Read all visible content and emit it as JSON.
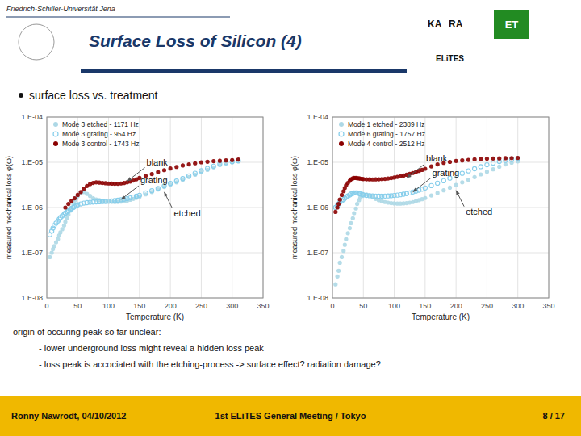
{
  "page": {
    "university": "Friedrich-Schiller-Universität Jena",
    "title": "Surface Loss of Silicon (4)",
    "logos": [
      "KA",
      "RA",
      "ET",
      "ELiTES"
    ],
    "bullet": "surface loss vs. treatment",
    "body": [
      "origin of occuring peak so far unclear:",
      "- lower underground loss might reveal a hidden loss peak",
      "- loss peak is accociated with the etching-process -> surface effect? radiation damage?"
    ],
    "footer": [
      "Ronny Nawrodt, 04/10/2012",
      "1st ELiTES General Meeting / Tokyo",
      "8 / 17"
    ],
    "color": "#1a3869",
    "footer_color": "#f0b800",
    "logo_color": "#228B22"
  },
  "chart_data": [
    {
      "type": "scatter",
      "x_label": "Temperature (K)",
      "y_label": "measured mechanical loss φ(ω)",
      "log": "y",
      "grid": true,
      "legend": "upper left",
      "xlim": [
        0,
        350
      ],
      "xticks": [
        0,
        50,
        100,
        150,
        200,
        250,
        300,
        350
      ],
      "ylim": [
        1e-08,
        0.0001
      ],
      "yticks": [
        {
          "value": 1e-08,
          "label": "1.E-08"
        },
        {
          "value": 1e-07,
          "label": "1.E-07"
        },
        {
          "value": 1e-06,
          "label": "1.E-06"
        },
        {
          "value": 1e-05,
          "label": "1.E-05"
        },
        {
          "value": 0.0001,
          "label": "1.E-04"
        }
      ],
      "series": [
        {
          "name": "Mode 3 etched - 1171 Hz",
          "color": "#add8e6",
          "marker": "circle",
          "x": [
            5,
            8,
            10,
            12,
            15,
            18,
            20,
            22,
            25,
            28,
            30,
            33,
            35,
            38,
            40,
            43,
            45,
            48,
            50,
            55,
            60,
            65,
            70,
            75,
            80,
            85,
            90,
            95,
            100,
            105,
            110,
            115,
            120,
            125,
            130,
            135,
            140,
            145,
            150,
            160,
            170,
            180,
            190,
            200,
            210,
            220,
            230,
            240,
            250,
            260,
            270,
            280,
            290,
            300,
            310
          ],
          "values": [
            8e-08,
            1e-07,
            1.2e-07,
            1.4e-07,
            1.7e-07,
            2e-07,
            2.4e-07,
            2.8e-07,
            3.3e-07,
            4e-07,
            4.8e-07,
            5.8e-07,
            7e-07,
            8.5e-07,
            1e-06,
            1.2e-06,
            1.4e-06,
            1.6e-06,
            1.8e-06,
            2.1e-06,
            2.2e-06,
            2e-06,
            1.8e-06,
            1.6e-06,
            1.5e-06,
            1.45e-06,
            1.4e-06,
            1.38e-06,
            1.35e-06,
            1.33e-06,
            1.32e-06,
            1.33e-06,
            1.35e-06,
            1.38e-06,
            1.42e-06,
            1.48e-06,
            1.55e-06,
            1.63e-06,
            1.72e-06,
            1.95e-06,
            2.2e-06,
            2.5e-06,
            2.85e-06,
            3.2e-06,
            3.6e-06,
            4.1e-06,
            4.7e-06,
            5.3e-06,
            6e-06,
            6.8e-06,
            7.7e-06,
            8.7e-06,
            9.5e-06,
            1e-05,
            1.05e-05
          ]
        },
        {
          "name": "Mode 3 grating - 954 Hz",
          "color": "#87ceeb",
          "marker": "open-circle",
          "x": [
            5,
            8,
            10,
            12,
            15,
            18,
            20,
            22,
            25,
            28,
            30,
            33,
            35,
            38,
            40,
            43,
            45,
            48,
            50,
            55,
            60,
            65,
            70,
            75,
            80,
            85,
            90,
            95,
            100,
            105,
            110,
            115,
            120,
            125,
            130,
            135,
            140,
            145,
            150,
            160,
            170,
            180,
            190,
            200,
            210,
            220,
            230,
            240,
            250,
            260,
            270,
            280,
            290,
            300,
            310
          ],
          "values": [
            2.5e-07,
            3e-07,
            3.5e-07,
            4e-07,
            4.5e-07,
            5e-07,
            5.5e-07,
            6e-07,
            6.5e-07,
            7e-07,
            7.5e-07,
            8e-07,
            8.5e-07,
            9e-07,
            9.5e-07,
            1e-06,
            1.05e-06,
            1.1e-06,
            1.15e-06,
            1.2e-06,
            1.25e-06,
            1.28e-06,
            1.3e-06,
            1.32e-06,
            1.33e-06,
            1.34e-06,
            1.35e-06,
            1.36e-06,
            1.38e-06,
            1.4e-06,
            1.42e-06,
            1.45e-06,
            1.48e-06,
            1.52e-06,
            1.57e-06,
            1.63e-06,
            1.7e-06,
            1.78e-06,
            1.87e-06,
            2.1e-06,
            2.35e-06,
            2.65e-06,
            3e-06,
            3.4e-06,
            3.85e-06,
            4.35e-06,
            5e-06,
            5.7e-06,
            6.5e-06,
            7.3e-06,
            8.2e-06,
            9.2e-06,
            9.8e-06,
            1.03e-05,
            1.08e-05
          ]
        },
        {
          "name": "Mode 3 control - 1743 Hz",
          "color": "#8b0000",
          "marker": "circle",
          "x": [
            30,
            35,
            40,
            45,
            50,
            55,
            60,
            65,
            70,
            75,
            80,
            85,
            90,
            95,
            100,
            105,
            110,
            115,
            120,
            125,
            130,
            135,
            140,
            145,
            150,
            160,
            170,
            180,
            190,
            200,
            210,
            220,
            230,
            240,
            250,
            260,
            270,
            280,
            290,
            300,
            310
          ],
          "values": [
            1e-06,
            1.2e-06,
            1.4e-06,
            1.6e-06,
            1.9e-06,
            2.2e-06,
            2.6e-06,
            3e-06,
            3.3e-06,
            3.5e-06,
            3.6e-06,
            3.55e-06,
            3.5e-06,
            3.45e-06,
            3.4e-06,
            3.38e-06,
            3.35e-06,
            3.35e-06,
            3.4e-06,
            3.48e-06,
            3.6e-06,
            3.75e-06,
            3.95e-06,
            4.2e-06,
            4.5e-06,
            5e-06,
            5.5e-06,
            6.1e-06,
            6.7e-06,
            7.3e-06,
            7.9e-06,
            8.5e-06,
            9e-06,
            9.5e-06,
            1e-05,
            1.03e-05,
            1.06e-05,
            1.08e-05,
            1.1e-05,
            1.12e-05,
            1.15e-05
          ]
        }
      ],
      "annotations": [
        {
          "text": "blank",
          "x": 130,
          "y": 3.8e-06
        },
        {
          "text": "grating",
          "x": 120,
          "y": 1.5e-06
        },
        {
          "text": "etched",
          "x": 190,
          "y": 2.2e-06
        }
      ]
    },
    {
      "type": "scatter",
      "x_label": "Temperature (K)",
      "y_label": "measured mechanical loss φ(ω)",
      "log": "y",
      "grid": true,
      "legend": "upper left",
      "xlim": [
        0,
        350
      ],
      "xticks": [
        0,
        50,
        100,
        150,
        200,
        250,
        300,
        350
      ],
      "ylim": [
        1e-08,
        0.0001
      ],
      "yticks": [
        {
          "value": 1e-08,
          "label": "1.E-08"
        },
        {
          "value": 1e-07,
          "label": "1.E-07"
        },
        {
          "value": 1e-06,
          "label": "1.E-06"
        },
        {
          "value": 1e-05,
          "label": "1.E-05"
        },
        {
          "value": 0.0001,
          "label": "1.E-04"
        }
      ],
      "series": [
        {
          "name": "Mode 1 etched - 2389 Hz",
          "color": "#add8e6",
          "marker": "circle",
          "x": [
            5,
            8,
            10,
            12,
            15,
            18,
            20,
            22,
            25,
            28,
            30,
            33,
            35,
            38,
            40,
            43,
            45,
            48,
            50,
            55,
            60,
            65,
            70,
            75,
            80,
            85,
            90,
            95,
            100,
            105,
            110,
            115,
            120,
            125,
            130,
            135,
            140,
            145,
            150,
            160,
            170,
            180,
            190,
            200,
            210,
            220,
            230,
            240,
            250,
            260,
            270,
            280,
            290,
            300
          ],
          "values": [
            2e-08,
            3e-08,
            4e-08,
            6e-08,
            8e-08,
            1.1e-07,
            1.5e-07,
            2e-07,
            2.7e-07,
            3.5e-07,
            4.5e-07,
            5.8e-07,
            7.5e-07,
            9.5e-07,
            1.2e-06,
            1.45e-06,
            1.65e-06,
            1.8e-06,
            1.9e-06,
            1.95e-06,
            1.85e-06,
            1.7e-06,
            1.55e-06,
            1.45e-06,
            1.38e-06,
            1.32e-06,
            1.28e-06,
            1.25e-06,
            1.23e-06,
            1.22e-06,
            1.22e-06,
            1.23e-06,
            1.25e-06,
            1.28e-06,
            1.32e-06,
            1.38e-06,
            1.45e-06,
            1.53e-06,
            1.62e-06,
            1.85e-06,
            2.1e-06,
            2.4e-06,
            2.75e-06,
            3.15e-06,
            3.6e-06,
            4.1e-06,
            4.7e-06,
            5.4e-06,
            6.2e-06,
            7e-06,
            8e-06,
            9e-06,
            9.8e-06,
            1.05e-05
          ]
        },
        {
          "name": "Mode 6 grating - 1757 Hz",
          "color": "#87ceeb",
          "marker": "open-circle",
          "x": [
            5,
            8,
            10,
            12,
            15,
            18,
            20,
            22,
            25,
            28,
            30,
            33,
            35,
            38,
            40,
            43,
            45,
            48,
            50,
            55,
            60,
            65,
            70,
            75,
            80,
            85,
            90,
            95,
            100,
            105,
            110,
            115,
            120,
            125,
            130,
            135,
            140,
            145,
            150,
            160,
            170,
            180,
            190,
            200,
            210,
            220,
            230,
            240,
            250,
            260,
            270,
            280,
            290,
            300
          ],
          "values": [
            1e-06,
            1.1e-06,
            1.2e-06,
            1.3e-06,
            1.4e-06,
            1.5e-06,
            1.6e-06,
            1.7e-06,
            1.8e-06,
            1.9e-06,
            2e-06,
            2.05e-06,
            2.1e-06,
            2.1e-06,
            2.1e-06,
            2.05e-06,
            2e-06,
            1.95e-06,
            1.9e-06,
            1.85e-06,
            1.82e-06,
            1.8e-06,
            1.79e-06,
            1.78e-06,
            1.78e-06,
            1.79e-06,
            1.8e-06,
            1.82e-06,
            1.85e-06,
            1.88e-06,
            1.92e-06,
            1.97e-06,
            2.03e-06,
            2.1e-06,
            2.2e-06,
            2.3e-06,
            2.42e-06,
            2.55e-06,
            2.7e-06,
            3.05e-06,
            3.45e-06,
            3.9e-06,
            4.45e-06,
            5.05e-06,
            5.7e-06,
            6.45e-06,
            7.2e-06,
            8e-06,
            8.8e-06,
            9.6e-06,
            1.04e-05,
            1.1e-05,
            1.15e-05,
            1.2e-05
          ]
        },
        {
          "name": "Mode 4 control - 2512 Hz",
          "color": "#8b0000",
          "marker": "circle",
          "x": [
            5,
            8,
            10,
            12,
            15,
            18,
            20,
            22,
            25,
            28,
            30,
            33,
            35,
            38,
            40,
            43,
            45,
            48,
            50,
            55,
            60,
            65,
            70,
            75,
            80,
            85,
            90,
            95,
            100,
            105,
            110,
            115,
            120,
            125,
            130,
            135,
            140,
            145,
            150,
            160,
            170,
            180,
            190,
            200,
            210,
            220,
            230,
            240,
            250,
            260,
            270,
            280,
            290,
            300
          ],
          "values": [
            8e-07,
            1e-06,
            1.2e-06,
            1.5e-06,
            1.9e-06,
            2.3e-06,
            2.7e-06,
            3.1e-06,
            3.5e-06,
            3.9e-06,
            4.2e-06,
            4.4e-06,
            4.5e-06,
            4.5e-06,
            4.45e-06,
            4.4e-06,
            4.35e-06,
            4.3e-06,
            4.25e-06,
            4.2e-06,
            4.18e-06,
            4.17e-06,
            4.18e-06,
            4.2e-06,
            4.25e-06,
            4.3e-06,
            4.38e-06,
            4.48e-06,
            4.6e-06,
            4.75e-06,
            4.92e-06,
            5.1e-06,
            5.3e-06,
            5.55e-06,
            5.8e-06,
            6.1e-06,
            6.45e-06,
            6.8e-06,
            7.2e-06,
            8.1e-06,
            9e-06,
            9.7e-06,
            1.02e-05,
            1.07e-05,
            1.1e-05,
            1.13e-05,
            1.16e-05,
            1.18e-05,
            1.2e-05,
            1.21e-05,
            1.22e-05,
            1.23e-05,
            1.24e-05,
            1.25e-05
          ]
        }
      ],
      "annotations": [
        {
          "text": "blank",
          "x": 120,
          "y": 4.5e-06
        },
        {
          "text": "grating",
          "x": 130,
          "y": 2.2e-06
        },
        {
          "text": "etched",
          "x": 200,
          "y": 2.4e-06
        }
      ]
    }
  ]
}
